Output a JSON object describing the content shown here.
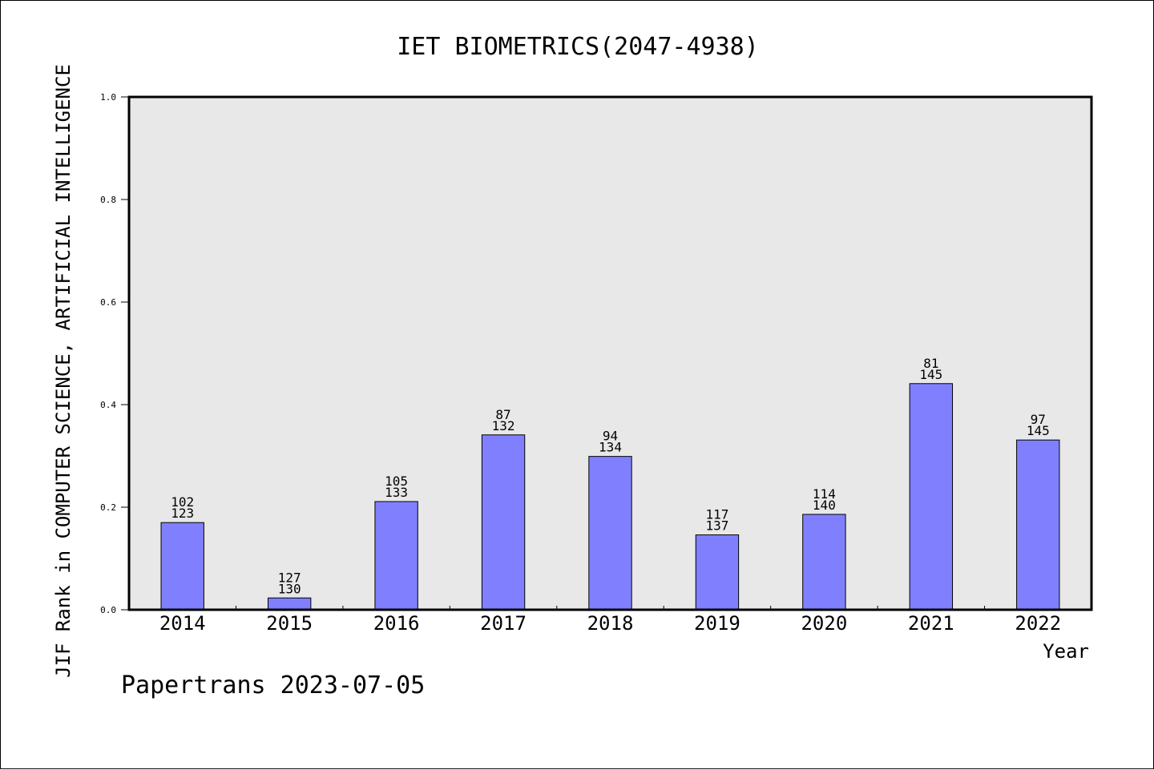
{
  "chart_data": {
    "type": "bar",
    "title": "IET BIOMETRICS(2047-4938)",
    "xlabel": "Year",
    "ylabel": "JIF Rank in COMPUTER SCIENCE, ARTIFICIAL INTELLIGENCE",
    "categories": [
      "2014",
      "2015",
      "2016",
      "2017",
      "2018",
      "2019",
      "2020",
      "2021",
      "2022"
    ],
    "values": [
      0.17,
      0.023,
      0.211,
      0.341,
      0.299,
      0.146,
      0.186,
      0.441,
      0.331
    ],
    "rank": [
      102,
      127,
      105,
      87,
      94,
      117,
      114,
      81,
      97
    ],
    "total": [
      123,
      130,
      133,
      132,
      134,
      137,
      140,
      145,
      145
    ],
    "ylim": [
      0,
      1.0
    ],
    "yticks": [
      "0.0",
      "0.2",
      "0.4",
      "0.6",
      "0.8",
      "1.0"
    ],
    "grid": false,
    "colors": {
      "bar": "#8080ff",
      "plot_bg": "#e8e8e8",
      "edge": "#000000"
    }
  },
  "footer": {
    "watermark": "Papertrans 2023-07-05"
  }
}
